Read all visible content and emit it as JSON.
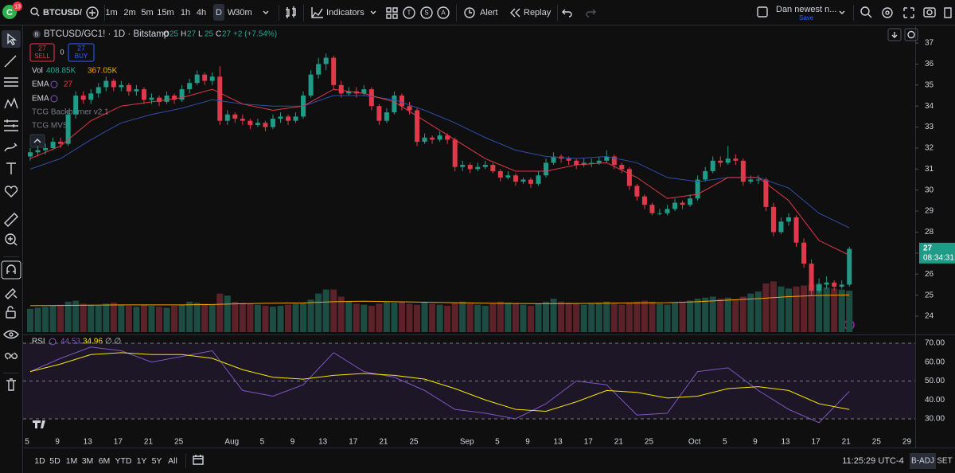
{
  "toolbar": {
    "logo": "C",
    "badge": "13",
    "symbol": "BTCUSD/",
    "intervals": [
      "1m",
      "2m",
      "5m",
      "15m",
      "1h",
      "4h",
      "D",
      "W",
      "30m"
    ],
    "indicators": "Indicators",
    "badges": [
      "T",
      "S",
      "A"
    ],
    "alert": "Alert",
    "replay": "Replay",
    "layout_name": "Dan newest n...",
    "save": "Save"
  },
  "legend": {
    "exchange_icon": "B",
    "title": "BTCUSD/GC1! · 1D · Bitstamp",
    "ohlc": [
      [
        "O",
        "25"
      ],
      [
        "H",
        "27"
      ],
      [
        "L",
        "25"
      ],
      [
        "C",
        "27"
      ]
    ],
    "change": "+2 (+7.54%)",
    "sell_price": "27",
    "sell": "SELL",
    "spread": "0",
    "buy_price": "27",
    "buy": "BUY",
    "vol": "Vol",
    "vol_value": "408.85K",
    "vol_ma": "367.05K",
    "ema1": "EMA",
    "ema1_value": "27",
    "ema2": "EMA",
    "indicator3": "TCG Backburner v2.1",
    "indicator4": "TCG MVS"
  },
  "chart": {
    "candles": [
      [
        31.6,
        32.0,
        31.4,
        31.8
      ],
      [
        31.8,
        32.1,
        31.6,
        31.9
      ],
      [
        31.9,
        32.2,
        31.7,
        32.0
      ],
      [
        32.0,
        32.5,
        31.9,
        32.3
      ],
      [
        32.3,
        32.5,
        32.0,
        32.2
      ],
      [
        32.2,
        33.8,
        32.1,
        33.6
      ],
      [
        33.6,
        34.7,
        33.4,
        34.5
      ],
      [
        34.5,
        34.7,
        34.1,
        34.3
      ],
      [
        34.3,
        34.8,
        34.1,
        34.6
      ],
      [
        34.6,
        35.1,
        34.4,
        34.9
      ],
      [
        34.9,
        35.4,
        34.7,
        35.2
      ],
      [
        35.2,
        35.3,
        34.7,
        34.9
      ],
      [
        34.9,
        35.2,
        34.7,
        35.0
      ],
      [
        35.0,
        35.1,
        34.5,
        34.7
      ],
      [
        34.7,
        35.0,
        34.5,
        34.8
      ],
      [
        34.8,
        34.9,
        34.1,
        34.3
      ],
      [
        34.3,
        34.6,
        34.1,
        34.4
      ],
      [
        34.4,
        34.5,
        34.0,
        34.2
      ],
      [
        34.2,
        34.7,
        34.1,
        34.5
      ],
      [
        34.5,
        34.6,
        34.1,
        34.3
      ],
      [
        34.3,
        35.0,
        34.2,
        34.8
      ],
      [
        34.8,
        35.3,
        34.6,
        35.1
      ],
      [
        35.1,
        35.7,
        35.0,
        35.5
      ],
      [
        35.5,
        35.6,
        35.0,
        35.2
      ],
      [
        35.2,
        35.6,
        35.0,
        35.4
      ],
      [
        35.4,
        35.9,
        33.1,
        33.3
      ],
      [
        33.3,
        33.8,
        33.1,
        33.6
      ],
      [
        33.6,
        33.7,
        33.2,
        33.4
      ],
      [
        33.4,
        33.6,
        33.1,
        33.3
      ],
      [
        33.3,
        33.4,
        32.9,
        33.1
      ],
      [
        33.1,
        33.4,
        33.0,
        33.2
      ],
      [
        33.2,
        33.3,
        32.8,
        33.0
      ],
      [
        33.0,
        33.6,
        32.9,
        33.4
      ],
      [
        33.4,
        33.7,
        33.2,
        33.5
      ],
      [
        33.5,
        33.6,
        33.1,
        33.3
      ],
      [
        33.3,
        33.7,
        33.2,
        33.5
      ],
      [
        33.5,
        34.7,
        33.4,
        34.5
      ],
      [
        34.5,
        35.7,
        34.4,
        35.5
      ],
      [
        35.5,
        36.3,
        35.3,
        36.0
      ],
      [
        36.0,
        36.5,
        35.7,
        36.3
      ],
      [
        36.3,
        36.4,
        34.8,
        35.0
      ],
      [
        35.0,
        35.2,
        34.4,
        34.6
      ],
      [
        34.6,
        34.9,
        34.5,
        34.7
      ],
      [
        34.7,
        34.9,
        34.4,
        34.6
      ],
      [
        34.6,
        35.0,
        34.5,
        34.8
      ],
      [
        34.8,
        34.9,
        33.8,
        34.0
      ],
      [
        34.0,
        34.1,
        33.1,
        33.3
      ],
      [
        33.3,
        33.9,
        33.2,
        33.7
      ],
      [
        33.7,
        34.7,
        33.6,
        34.5
      ],
      [
        34.5,
        34.6,
        33.8,
        34.0
      ],
      [
        34.0,
        34.2,
        33.6,
        33.8
      ],
      [
        33.8,
        33.9,
        32.1,
        32.3
      ],
      [
        32.3,
        32.7,
        32.2,
        32.5
      ],
      [
        32.5,
        32.6,
        32.2,
        32.4
      ],
      [
        32.4,
        32.8,
        32.3,
        32.6
      ],
      [
        32.6,
        32.7,
        32.2,
        32.4
      ],
      [
        32.4,
        32.5,
        30.9,
        31.1
      ],
      [
        31.1,
        31.4,
        30.9,
        31.2
      ],
      [
        31.2,
        31.3,
        30.8,
        31.0
      ],
      [
        31.0,
        31.3,
        30.9,
        31.1
      ],
      [
        31.1,
        31.4,
        31.0,
        31.2
      ],
      [
        31.2,
        31.3,
        30.8,
        30.9
      ],
      [
        30.9,
        31.0,
        30.4,
        30.6
      ],
      [
        30.6,
        30.9,
        30.5,
        30.7
      ],
      [
        30.7,
        30.8,
        30.2,
        30.4
      ],
      [
        30.4,
        30.6,
        30.3,
        30.5
      ],
      [
        30.5,
        30.6,
        30.1,
        30.3
      ],
      [
        30.3,
        30.9,
        30.2,
        30.7
      ],
      [
        30.7,
        31.5,
        30.6,
        31.3
      ],
      [
        31.3,
        31.8,
        31.2,
        31.6
      ],
      [
        31.6,
        31.7,
        31.3,
        31.5
      ],
      [
        31.5,
        31.6,
        31.2,
        31.4
      ],
      [
        31.4,
        31.5,
        31.0,
        31.2
      ],
      [
        31.2,
        31.5,
        31.1,
        31.3
      ],
      [
        31.3,
        31.5,
        31.1,
        31.3
      ],
      [
        31.3,
        31.6,
        31.2,
        31.4
      ],
      [
        31.4,
        31.9,
        31.3,
        31.6
      ],
      [
        31.6,
        31.7,
        31.0,
        31.2
      ],
      [
        31.2,
        31.3,
        30.8,
        31.0
      ],
      [
        31.0,
        31.1,
        30.0,
        30.2
      ],
      [
        30.2,
        30.3,
        29.5,
        29.7
      ],
      [
        29.7,
        29.8,
        29.1,
        29.3
      ],
      [
        29.3,
        29.4,
        28.8,
        28.9
      ],
      [
        28.9,
        29.1,
        28.8,
        28.9
      ],
      [
        28.9,
        29.3,
        28.8,
        29.1
      ],
      [
        29.1,
        29.6,
        29.0,
        29.4
      ],
      [
        29.4,
        29.5,
        29.1,
        29.3
      ],
      [
        29.3,
        29.8,
        29.2,
        29.6
      ],
      [
        29.6,
        30.7,
        29.5,
        30.5
      ],
      [
        30.5,
        31.1,
        30.4,
        30.9
      ],
      [
        30.9,
        31.6,
        30.8,
        31.4
      ],
      [
        31.4,
        31.6,
        31.1,
        31.3
      ],
      [
        31.3,
        32.1,
        31.2,
        31.5
      ],
      [
        31.5,
        31.7,
        31.2,
        31.4
      ],
      [
        31.4,
        31.5,
        30.2,
        30.4
      ],
      [
        30.4,
        30.7,
        30.3,
        30.5
      ],
      [
        30.5,
        30.7,
        30.3,
        30.5
      ],
      [
        30.5,
        30.6,
        29.0,
        29.2
      ],
      [
        29.2,
        29.4,
        27.8,
        28.0
      ],
      [
        28.0,
        28.7,
        27.9,
        28.5
      ],
      [
        28.5,
        28.9,
        28.3,
        28.7
      ],
      [
        28.7,
        28.8,
        27.3,
        27.5
      ],
      [
        27.5,
        27.7,
        26.3,
        26.5
      ],
      [
        26.5,
        26.7,
        25.0,
        25.2
      ],
      [
        25.2,
        25.8,
        25.1,
        25.5
      ],
      [
        25.5,
        25.9,
        25.3,
        25.6
      ],
      [
        25.6,
        25.7,
        25.2,
        25.4
      ],
      [
        25.4,
        25.7,
        25.3,
        25.5
      ],
      [
        25.5,
        27.3,
        25.4,
        27.2
      ]
    ],
    "volumes": [
      230,
      240,
      250,
      260,
      270,
      300,
      310,
      280,
      270,
      260,
      280,
      290,
      270,
      260,
      250,
      270,
      260,
      250,
      240,
      260,
      270,
      300,
      290,
      280,
      270,
      380,
      360,
      300,
      290,
      280,
      270,
      260,
      250,
      260,
      270,
      280,
      290,
      320,
      380,
      420,
      420,
      350,
      300,
      280,
      270,
      260,
      280,
      300,
      290,
      300,
      280,
      270,
      300,
      280,
      270,
      260,
      290,
      300,
      280,
      270,
      260,
      280,
      300,
      290,
      280,
      270,
      260,
      280,
      300,
      330,
      300,
      290,
      280,
      270,
      280,
      290,
      300,
      280,
      270,
      290,
      300,
      310,
      300,
      280,
      270,
      290,
      300,
      310,
      330,
      340,
      350,
      330,
      340,
      320,
      350,
      380,
      400,
      480,
      500,
      450,
      430,
      450,
      460,
      470,
      480,
      440,
      430,
      420,
      408.85
    ],
    "ema_fast": [
      31.5,
      32.1,
      33.3,
      34.0,
      34.2,
      34.4,
      34.8,
      34.1,
      33.8,
      34.0,
      34.8,
      34.6,
      34.2,
      33.3,
      32.4,
      31.5,
      30.9,
      30.9,
      31.2,
      31.3,
      30.6,
      29.6,
      29.8,
      30.6,
      30.6,
      29.5,
      27.6,
      26.9
    ],
    "ema_slow": [
      31.0,
      31.5,
      32.4,
      33.2,
      33.6,
      33.9,
      34.3,
      34.1,
      34.0,
      34.0,
      34.5,
      34.5,
      34.3,
      33.8,
      33.2,
      32.5,
      31.9,
      31.6,
      31.5,
      31.6,
      31.3,
      30.6,
      30.4,
      30.6,
      30.6,
      30.1,
      28.9,
      28.2
    ],
    "volume_ma": [
      260,
      262,
      265,
      268,
      268,
      268,
      272,
      280,
      285,
      288,
      300,
      305,
      300,
      295,
      290,
      285,
      282,
      280,
      282,
      285,
      288,
      290,
      300,
      315,
      330,
      350,
      362,
      367.05
    ],
    "price_ticks": [
      24,
      25,
      26,
      27,
      28,
      29,
      30,
      31,
      32,
      33,
      34,
      35,
      36,
      37
    ],
    "last_price": 27,
    "countdown": "08:34:31",
    "x_labels": [
      "5",
      "9",
      "13",
      "17",
      "21",
      "25",
      "Aug",
      "5",
      "9",
      "13",
      "17",
      "21",
      "25",
      "Sep",
      "5",
      "9",
      "13",
      "17",
      "21",
      "25",
      "Oct",
      "5",
      "9",
      "13",
      "17",
      "21",
      "25",
      "29"
    ]
  },
  "rsi": {
    "name": "RSI",
    "value": "44.53",
    "ma_value": "34.96",
    "extra": "∅ ∅",
    "values": [
      55,
      62,
      68,
      66,
      60,
      63,
      66,
      45,
      42,
      48,
      65,
      55,
      52,
      45,
      35,
      33,
      30,
      38,
      50,
      48,
      32,
      33,
      55,
      57,
      45,
      35,
      28,
      44.53
    ],
    "ma": [
      55,
      59,
      64,
      65,
      64,
      64,
      62,
      56,
      52,
      51,
      53,
      54,
      53,
      51,
      46,
      40,
      35,
      34,
      39,
      45,
      44,
      41,
      42,
      46,
      47,
      45,
      38,
      34.96
    ],
    "ticks": [
      {
        "value": 70,
        "label": "70.00"
      },
      {
        "value": 60,
        "label": "60.00"
      },
      {
        "value": 50,
        "label": "50.00"
      },
      {
        "value": 40,
        "label": "40.00"
      },
      {
        "value": 30,
        "label": "30.00"
      }
    ]
  },
  "bottom_bar": {
    "ranges": [
      "1D",
      "5D",
      "1M",
      "3M",
      "6M",
      "YTD",
      "1Y",
      "5Y",
      "All"
    ],
    "time": "11:25:29 UTC-4",
    "adj": "B-ADJ",
    "set": "SET"
  }
}
